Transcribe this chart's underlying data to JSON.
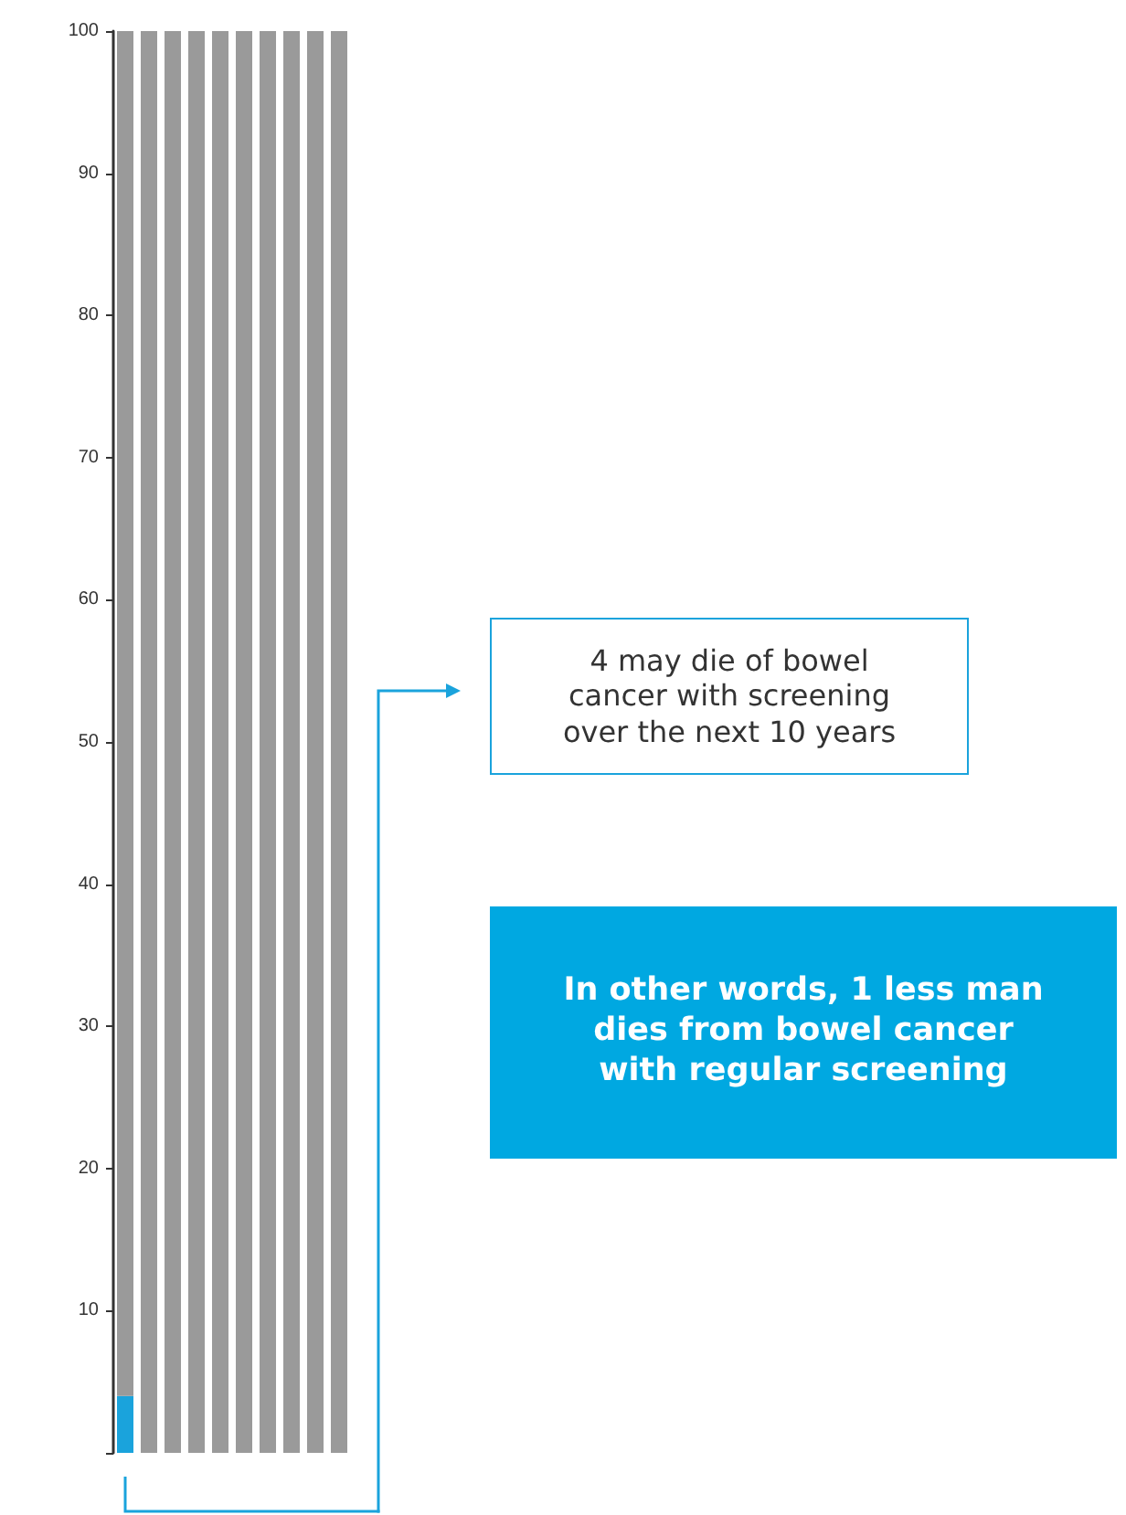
{
  "chart_data": {
    "type": "bar",
    "stacked": true,
    "categories": [
      null,
      null,
      null,
      null,
      null,
      null,
      null,
      null,
      null,
      null
    ],
    "series": [
      {
        "color": "#1aa3dc",
        "values": [
          4,
          0,
          0,
          0,
          0,
          0,
          0,
          0,
          0,
          0
        ]
      },
      {
        "color": "#9a9a9a",
        "values": [
          96,
          100,
          100,
          100,
          100,
          100,
          100,
          100,
          100,
          100
        ]
      }
    ],
    "ylim": [
      0,
      100
    ],
    "yticks": [
      {
        "value": 0,
        "label": null
      },
      10,
      20,
      30,
      40,
      50,
      60,
      70,
      80,
      90,
      100
    ],
    "tick_labels": "y",
    "grid": false,
    "annotations": [
      "4 may die of bowel cancer with screening over the next 10 years",
      "In other words, 1 less man dies from bowel cancer with regular screening"
    ]
  }
}
